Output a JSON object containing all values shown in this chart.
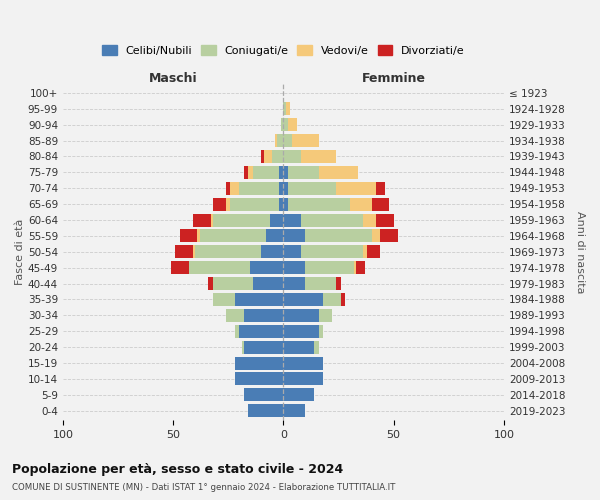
{
  "age_groups": [
    "0-4",
    "5-9",
    "10-14",
    "15-19",
    "20-24",
    "25-29",
    "30-34",
    "35-39",
    "40-44",
    "45-49",
    "50-54",
    "55-59",
    "60-64",
    "65-69",
    "70-74",
    "75-79",
    "80-84",
    "85-89",
    "90-94",
    "95-99",
    "100+"
  ],
  "birth_years": [
    "2019-2023",
    "2014-2018",
    "2009-2013",
    "2004-2008",
    "1999-2003",
    "1994-1998",
    "1989-1993",
    "1984-1988",
    "1979-1983",
    "1974-1978",
    "1969-1973",
    "1964-1968",
    "1959-1963",
    "1954-1958",
    "1949-1953",
    "1944-1948",
    "1939-1943",
    "1934-1938",
    "1929-1933",
    "1924-1928",
    "≤ 1923"
  ],
  "colors": {
    "celibi": "#4a7db5",
    "coniugati": "#b8cfa0",
    "vedovi": "#f5c97a",
    "divorziati": "#cc2222"
  },
  "maschi": {
    "celibi": [
      16,
      18,
      22,
      22,
      18,
      20,
      18,
      22,
      14,
      15,
      10,
      8,
      6,
      2,
      2,
      2,
      0,
      0,
      0,
      0,
      0
    ],
    "coniugati": [
      0,
      0,
      0,
      0,
      1,
      2,
      8,
      10,
      18,
      28,
      30,
      30,
      26,
      22,
      18,
      12,
      5,
      3,
      1,
      0,
      0
    ],
    "vedovi": [
      0,
      0,
      0,
      0,
      0,
      0,
      0,
      0,
      0,
      0,
      1,
      1,
      1,
      2,
      4,
      2,
      4,
      1,
      0,
      0,
      0
    ],
    "divorziati": [
      0,
      0,
      0,
      0,
      0,
      0,
      0,
      0,
      2,
      8,
      8,
      8,
      8,
      6,
      2,
      2,
      1,
      0,
      0,
      0,
      0
    ]
  },
  "femmine": {
    "celibi": [
      10,
      14,
      18,
      18,
      14,
      16,
      16,
      18,
      10,
      10,
      8,
      10,
      8,
      2,
      2,
      2,
      0,
      0,
      0,
      0,
      0
    ],
    "coniugati": [
      0,
      0,
      0,
      0,
      2,
      2,
      6,
      8,
      14,
      22,
      28,
      30,
      28,
      28,
      22,
      14,
      8,
      4,
      2,
      1,
      0
    ],
    "vedovi": [
      0,
      0,
      0,
      0,
      0,
      0,
      0,
      0,
      0,
      1,
      2,
      4,
      6,
      10,
      18,
      18,
      16,
      12,
      4,
      2,
      0
    ],
    "divorziati": [
      0,
      0,
      0,
      0,
      0,
      0,
      0,
      2,
      2,
      4,
      6,
      8,
      8,
      8,
      4,
      0,
      0,
      0,
      0,
      0,
      0
    ]
  },
  "xlim": 100,
  "title": "Popolazione per età, sesso e stato civile - 2024",
  "subtitle": "COMUNE DI SUSTINENTE (MN) - Dati ISTAT 1° gennaio 2024 - Elaborazione TUTTITALIA.IT",
  "ylabel_left": "Fasce di età",
  "ylabel_right": "Anni di nascita",
  "label_maschi": "Maschi",
  "label_femmine": "Femmine",
  "legend_labels": [
    "Celibi/Nubili",
    "Coniugati/e",
    "Vedovi/e",
    "Divorziati/e"
  ],
  "bg_color": "#f2f2f2"
}
